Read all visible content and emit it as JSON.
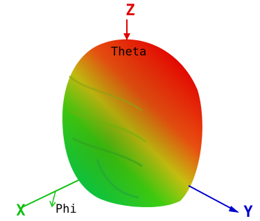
{
  "axes": {
    "z": {
      "label": "Z"
    },
    "x": {
      "label": "X"
    },
    "y": {
      "label": "Y"
    }
  },
  "angles": {
    "theta": "Theta",
    "phi": "Phi"
  }
}
